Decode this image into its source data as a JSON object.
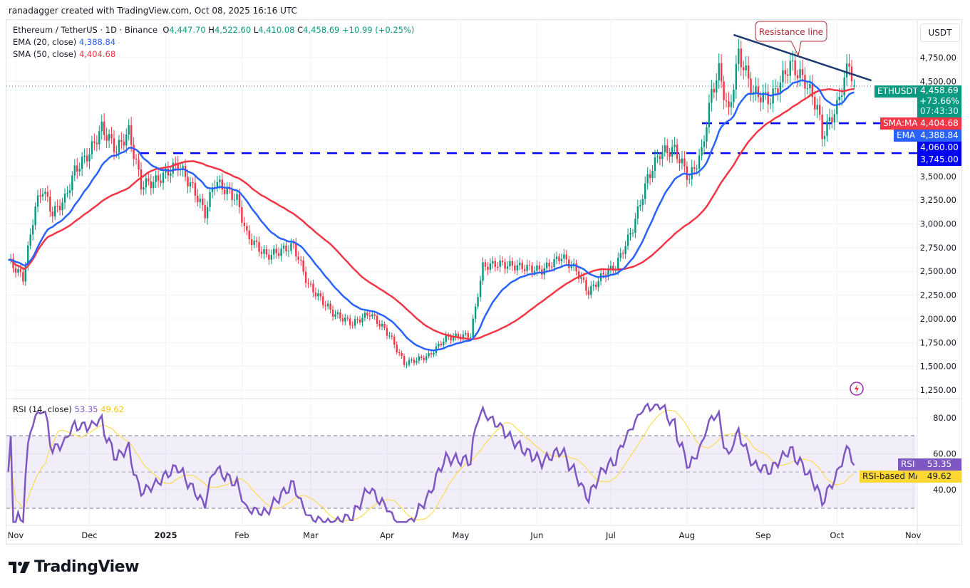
{
  "credit": "ranadagger created with TradingView.com, Oct 08, 2025 16:16 UTC",
  "legend": {
    "symbol": "Ethereum / TetherUS · 1D · Binance",
    "o_label": "O",
    "o": "4,447.70",
    "h_label": "H",
    "h": "4,522.60",
    "l_label": "L",
    "l": "4,410.08",
    "c_label": "C",
    "c": "4,458.69",
    "change": "+10.99 (+0.25%)",
    "ema_label": "EMA (20, close)",
    "ema": "4,388.84",
    "sma_label": "SMA (50, close)",
    "sma": "4,404.68",
    "rsi_label": "RSI (14, close)",
    "rsi": "53.35",
    "rsi_ma": "49.62"
  },
  "price_axis": {
    "currency": "USDT",
    "ticks": [
      "4,750.00",
      "4,500.00",
      "3,500.00",
      "3,250.00",
      "3,000.00",
      "2,750.00",
      "2,500.00",
      "2,250.00",
      "2,000.00",
      "1,750.00",
      "1,500.00",
      "1,250.00"
    ]
  },
  "rsi_axis": {
    "ticks": [
      "80.00",
      "60.00",
      "40.00"
    ]
  },
  "time_axis": {
    "ticks": [
      "Nov",
      "Dec",
      "2025",
      "Feb",
      "Mar",
      "Apr",
      "May",
      "Jun",
      "Jul",
      "Aug",
      "Sep",
      "Oct",
      "Nov"
    ]
  },
  "tags": {
    "symbol": "ETHUSDT",
    "price": "4,458.69",
    "pct": "+73.66%",
    "countdown": "07:43:30",
    "sma_name": "SMA:MA",
    "sma_val": "4,404.68",
    "ema_name": "EMA",
    "ema_val": "4,388.84",
    "level1": "4,060.00",
    "level2": "3,745.00",
    "rsi_name": "RSI",
    "rsi_val": "53.35",
    "rsima_name": "RSI-based MA",
    "rsima_val": "49.62"
  },
  "annotation": {
    "text": "Resistance line"
  },
  "brand": "TradingView",
  "colors": {
    "up": "#089981",
    "down": "#f23645",
    "ema": "#2962ff",
    "sma": "#f23645",
    "rsi": "#7e57c2",
    "rsi_ma": "#fdd835",
    "level": "#0000ff",
    "resistance": "#1e3a6e"
  },
  "chart_data": {
    "type": "candlestick",
    "title": "Ethereum / TetherUS · 1D · Binance",
    "y_unit": "USDT",
    "ylim": [
      1150,
      5000
    ],
    "grid": true,
    "close_keypoints": [
      [
        "2024-10-29",
        2620
      ],
      [
        "2024-11-04",
        2430
      ],
      [
        "2024-11-09",
        3180
      ],
      [
        "2024-11-12",
        3370
      ],
      [
        "2024-11-16",
        3110
      ],
      [
        "2024-11-21",
        3260
      ],
      [
        "2024-11-25",
        3560
      ],
      [
        "2024-12-01",
        3750
      ],
      [
        "2024-12-06",
        4010
      ],
      [
        "2024-12-12",
        3780
      ],
      [
        "2024-12-17",
        3970
      ],
      [
        "2024-12-22",
        3410
      ],
      [
        "2024-12-28",
        3450
      ],
      [
        "2025-01-06",
        3630
      ],
      [
        "2025-01-13",
        3330
      ],
      [
        "2025-01-17",
        3110
      ],
      [
        "2025-01-21",
        3450
      ],
      [
        "2025-01-30",
        3260
      ],
      [
        "2025-02-03",
        2880
      ],
      [
        "2025-02-11",
        2660
      ],
      [
        "2025-02-22",
        2770
      ],
      [
        "2025-02-28",
        2360
      ],
      [
        "2025-03-10",
        2060
      ],
      [
        "2025-03-18",
        1950
      ],
      [
        "2025-03-25",
        2060
      ],
      [
        "2025-04-02",
        1830
      ],
      [
        "2025-04-08",
        1530
      ],
      [
        "2025-04-18",
        1610
      ],
      [
        "2025-04-25",
        1800
      ],
      [
        "2025-05-05",
        1830
      ],
      [
        "2025-05-10",
        2550
      ],
      [
        "2025-05-16",
        2580
      ],
      [
        "2025-05-25",
        2550
      ],
      [
        "2025-06-03",
        2510
      ],
      [
        "2025-06-11",
        2660
      ],
      [
        "2025-06-17",
        2510
      ],
      [
        "2025-06-22",
        2280
      ],
      [
        "2025-06-28",
        2470
      ],
      [
        "2025-07-03",
        2550
      ],
      [
        "2025-07-10",
        2960
      ],
      [
        "2025-07-16",
        3480
      ],
      [
        "2025-07-21",
        3750
      ],
      [
        "2025-07-27",
        3780
      ],
      [
        "2025-08-02",
        3480
      ],
      [
        "2025-08-07",
        3750
      ],
      [
        "2025-08-11",
        4380
      ],
      [
        "2025-08-14",
        4610
      ],
      [
        "2025-08-18",
        4160
      ],
      [
        "2025-08-22",
        4790
      ],
      [
        "2025-08-28",
        4380
      ],
      [
        "2025-09-04",
        4310
      ],
      [
        "2025-09-12",
        4680
      ],
      [
        "2025-09-18",
        4500
      ],
      [
        "2025-09-23",
        4230
      ],
      [
        "2025-09-25",
        3930
      ],
      [
        "2025-10-01",
        4230
      ],
      [
        "2025-10-04",
        4530
      ],
      [
        "2025-10-06",
        4690
      ],
      [
        "2025-10-08",
        4458.69
      ]
    ],
    "last": {
      "open": 4447.7,
      "high": 4522.6,
      "low": 4410.08,
      "close": 4458.69
    },
    "indicators": {
      "ema20_last": 4388.84,
      "sma50_last": 4404.68,
      "rsi14_last": 53.35,
      "rsi_ma_last": 49.62
    },
    "horizontal_levels": [
      4060,
      3745
    ],
    "resistance_line": [
      [
        "2025-08-20",
        4990
      ],
      [
        "2025-10-15",
        4510
      ]
    ],
    "rsi_bands": [
      70,
      50,
      30
    ]
  }
}
